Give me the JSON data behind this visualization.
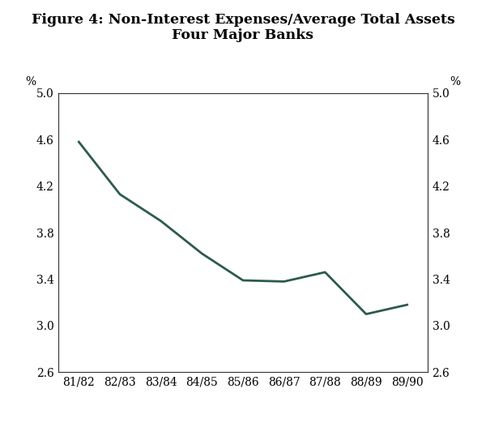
{
  "title_line1": "Figure 4: Non-Interest Expenses/Average Total Assets",
  "title_line2": "Four Major Banks",
  "x_labels": [
    "81/82",
    "82/83",
    "83/84",
    "84/85",
    "85/86",
    "86/87",
    "87/88",
    "88/89",
    "89/90"
  ],
  "y_values": [
    4.58,
    4.13,
    3.9,
    3.62,
    3.39,
    3.38,
    3.46,
    3.1,
    3.18
  ],
  "ylim": [
    2.6,
    5.0
  ],
  "yticks": [
    2.6,
    3.0,
    3.4,
    3.8,
    4.2,
    4.6,
    5.0
  ],
  "line_color": "#2d5a4e",
  "line_width": 2.0,
  "background_color": "#ffffff",
  "title_fontsize": 12.5,
  "tick_fontsize": 10,
  "ylabel_left": "%",
  "ylabel_right": "%"
}
